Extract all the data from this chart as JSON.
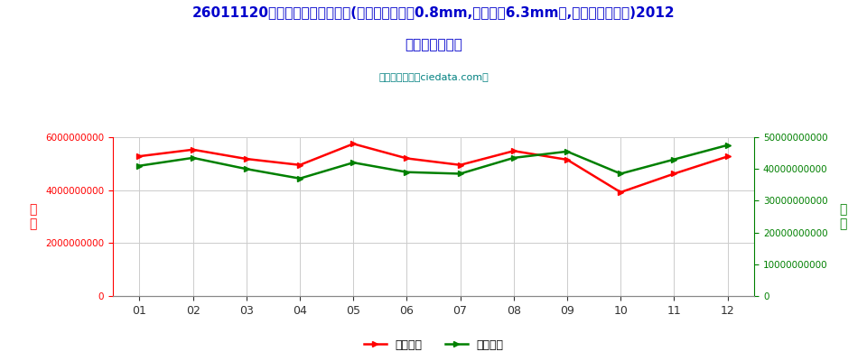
{
  "title_line1": "26011120未烧结铁矿砂及其精矿(平均粒度不小于0.8mm,但不大于6.3mm的,焙烧黄铁矿除外)2012",
  "title_line2": "年进口月度走势",
  "subtitle": "进出口服务网（ciedata.com）",
  "months": [
    "01",
    "02",
    "03",
    "04",
    "05",
    "06",
    "07",
    "08",
    "09",
    "10",
    "11",
    "12"
  ],
  "usd_values": [
    5280000000,
    5530000000,
    5180000000,
    4950000000,
    5750000000,
    5200000000,
    4950000000,
    5480000000,
    5150000000,
    3920000000,
    4620000000,
    5270000000
  ],
  "qty_values": [
    41000000000,
    43500000000,
    40000000000,
    37000000000,
    42000000000,
    39000000000,
    38500000000,
    43500000000,
    45500000000,
    38500000000,
    43000000000,
    47500000000
  ],
  "usd_color": "#FF0000",
  "qty_color": "#008000",
  "left_ylim": [
    0,
    6000000000
  ],
  "right_ylim": [
    0,
    50000000000
  ],
  "left_yticks": [
    0,
    2000000000,
    4000000000,
    6000000000
  ],
  "right_yticks": [
    0,
    10000000000,
    20000000000,
    30000000000,
    40000000000,
    50000000000
  ],
  "ylabel_left": "金\n额",
  "ylabel_right": "数\n量",
  "legend_usd": "进口美元",
  "legend_qty": "进口数量",
  "title_color": "#0000CC",
  "subtitle_color": "#008080",
  "left_axis_color": "#FF0000",
  "right_axis_color": "#008000",
  "background_color": "#FFFFFF",
  "grid_color": "#CCCCCC",
  "left_tick_labels": [
    "0",
    "2000000000",
    "4000000000",
    "6000000000"
  ],
  "right_tick_labels": [
    "0",
    "10000000000",
    "20000000000",
    "30000000000",
    "40000000000",
    "50000000000"
  ]
}
